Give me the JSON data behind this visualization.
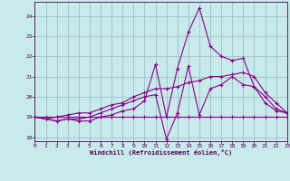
{
  "xlabel": "Windchill (Refroidissement éolien,°C)",
  "bg_color": "#c8eaea",
  "grid_color": "#a0c8c8",
  "line_color": "#880088",
  "xlim": [
    0,
    23
  ],
  "ylim": [
    17.8,
    24.7
  ],
  "yticks": [
    18,
    19,
    20,
    21,
    22,
    23,
    24
  ],
  "xticks": [
    0,
    1,
    2,
    3,
    4,
    5,
    6,
    7,
    8,
    9,
    10,
    11,
    12,
    13,
    14,
    15,
    16,
    17,
    18,
    19,
    20,
    21,
    22,
    23
  ],
  "series": [
    [
      19.0,
      19.0,
      19.0,
      19.0,
      19.0,
      19.0,
      19.0,
      19.0,
      19.0,
      19.0,
      19.0,
      19.0,
      19.0,
      19.0,
      19.0,
      19.0,
      19.0,
      19.0,
      19.0,
      19.0,
      19.0,
      19.0,
      19.0,
      19.0
    ],
    [
      19.0,
      18.9,
      18.8,
      18.9,
      18.8,
      18.8,
      19.0,
      19.1,
      19.3,
      19.4,
      19.8,
      21.6,
      19.0,
      21.4,
      23.2,
      24.4,
      22.5,
      22.0,
      21.8,
      21.9,
      20.5,
      19.7,
      19.3,
      19.2
    ],
    [
      19.0,
      18.9,
      18.8,
      18.9,
      18.9,
      19.0,
      19.2,
      19.4,
      19.6,
      19.8,
      20.0,
      20.1,
      17.9,
      19.2,
      21.5,
      19.1,
      20.4,
      20.6,
      21.0,
      20.6,
      20.5,
      20.0,
      19.4,
      19.2
    ],
    [
      19.0,
      18.9,
      19.0,
      19.1,
      19.2,
      19.2,
      19.4,
      19.6,
      19.7,
      20.0,
      20.2,
      20.4,
      20.4,
      20.5,
      20.7,
      20.8,
      21.0,
      21.0,
      21.1,
      21.2,
      21.0,
      20.2,
      19.7,
      19.2
    ]
  ]
}
